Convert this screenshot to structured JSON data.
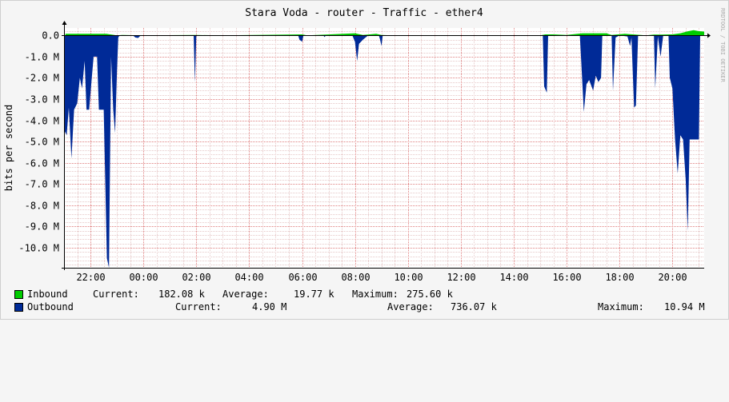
{
  "title": "Stara Voda - router - Traffic - ether4",
  "watermark": "RRDTOOL / TOBI OETIKER",
  "chart_data": {
    "type": "area",
    "ylabel": "bits per second",
    "ylim": [
      -10.94,
      0.35
    ],
    "y_unit": "Mbps",
    "y_ticks": [
      {
        "value": 0,
        "label": "0.0"
      },
      {
        "value": -1,
        "label": "-1.0 M"
      },
      {
        "value": -2,
        "label": "-2.0 M"
      },
      {
        "value": -3,
        "label": "-3.0 M"
      },
      {
        "value": -4,
        "label": "-4.0 M"
      },
      {
        "value": -5,
        "label": "-5.0 M"
      },
      {
        "value": -6,
        "label": "-6.0 M"
      },
      {
        "value": -7,
        "label": "-7.0 M"
      },
      {
        "value": -8,
        "label": "-8.0 M"
      },
      {
        "value": -9,
        "label": "-9.0 M"
      },
      {
        "value": -10,
        "label": "-10.0 M"
      }
    ],
    "x_range_hours": [
      21.0,
      45.2
    ],
    "x_ticks": [
      {
        "hour": 22,
        "label": "22:00"
      },
      {
        "hour": 24,
        "label": "00:00"
      },
      {
        "hour": 26,
        "label": "02:00"
      },
      {
        "hour": 28,
        "label": "04:00"
      },
      {
        "hour": 30,
        "label": "06:00"
      },
      {
        "hour": 32,
        "label": "08:00"
      },
      {
        "hour": 34,
        "label": "10:00"
      },
      {
        "hour": 36,
        "label": "12:00"
      },
      {
        "hour": 38,
        "label": "14:00"
      },
      {
        "hour": 40,
        "label": "16:00"
      },
      {
        "hour": 42,
        "label": "18:00"
      },
      {
        "hour": 44,
        "label": "20:00"
      }
    ],
    "series": [
      {
        "name": "Inbound",
        "color": "#00cc00",
        "points": [
          [
            21.05,
            0.08
          ],
          [
            21.4,
            0.08
          ],
          [
            21.8,
            0.08
          ],
          [
            22.2,
            0.08
          ],
          [
            22.6,
            0.08
          ],
          [
            23.0,
            0.0
          ],
          [
            23.2,
            0.02
          ],
          [
            24.0,
            0.0
          ],
          [
            26.0,
            0.02
          ],
          [
            27.0,
            0.0
          ],
          [
            30.0,
            0.05
          ],
          [
            30.2,
            0.0
          ],
          [
            32.0,
            0.1
          ],
          [
            32.3,
            0.02
          ],
          [
            32.8,
            0.08
          ],
          [
            33.0,
            0.02
          ],
          [
            33.4,
            0.0
          ],
          [
            39.0,
            0.0
          ],
          [
            39.2,
            0.05
          ],
          [
            39.5,
            0.05
          ],
          [
            40.0,
            0.02
          ],
          [
            40.6,
            0.1
          ],
          [
            41.0,
            0.1
          ],
          [
            41.5,
            0.1
          ],
          [
            41.7,
            0.02
          ],
          [
            42.2,
            0.08
          ],
          [
            42.5,
            0.05
          ],
          [
            43.0,
            0.0
          ],
          [
            43.3,
            0.04
          ],
          [
            43.6,
            0.04
          ],
          [
            44.0,
            0.05
          ],
          [
            44.3,
            0.1
          ],
          [
            44.6,
            0.2
          ],
          [
            44.8,
            0.25
          ],
          [
            45.0,
            0.2
          ],
          [
            45.2,
            0.18
          ]
        ]
      },
      {
        "name": "Outbound",
        "color": "#002a97",
        "points": [
          [
            21.02,
            -4.5
          ],
          [
            21.1,
            -4.7
          ],
          [
            21.18,
            -3.4
          ],
          [
            21.28,
            -5.8
          ],
          [
            21.38,
            -3.5
          ],
          [
            21.5,
            -3.2
          ],
          [
            21.6,
            -2.0
          ],
          [
            21.68,
            -2.5
          ],
          [
            21.78,
            -1.2
          ],
          [
            21.85,
            -3.5
          ],
          [
            21.95,
            -3.5
          ],
          [
            22.05,
            -2.0
          ],
          [
            22.12,
            -1.0
          ],
          [
            22.25,
            -1.0
          ],
          [
            22.32,
            -3.5
          ],
          [
            22.5,
            -3.5
          ],
          [
            22.62,
            -10.5
          ],
          [
            22.7,
            -10.94
          ],
          [
            22.78,
            -1.0
          ],
          [
            22.86,
            -3.5
          ],
          [
            22.93,
            -4.6
          ],
          [
            23.0,
            -1.8
          ],
          [
            23.05,
            -0.1
          ],
          [
            23.1,
            0.0
          ],
          [
            23.6,
            0.0
          ],
          [
            23.7,
            -0.1
          ],
          [
            23.8,
            -0.12
          ],
          [
            23.9,
            0.0
          ],
          [
            25.9,
            0.0
          ],
          [
            25.95,
            -2.2
          ],
          [
            26.0,
            0.0
          ],
          [
            29.85,
            0.0
          ],
          [
            29.9,
            -0.2
          ],
          [
            30.0,
            -0.3
          ],
          [
            30.05,
            0.0
          ],
          [
            30.8,
            0.0
          ],
          [
            30.85,
            -0.08
          ],
          [
            30.9,
            0.0
          ],
          [
            31.9,
            0.0
          ],
          [
            32.0,
            -0.3
          ],
          [
            32.08,
            -1.2
          ],
          [
            32.15,
            -0.4
          ],
          [
            32.3,
            -0.2
          ],
          [
            32.45,
            -0.05
          ],
          [
            32.5,
            0.0
          ],
          [
            32.9,
            0.0
          ],
          [
            32.95,
            -0.2
          ],
          [
            33.0,
            -0.5
          ],
          [
            33.05,
            0.0
          ],
          [
            39.1,
            0.0
          ],
          [
            39.15,
            -2.4
          ],
          [
            39.25,
            -2.7
          ],
          [
            39.3,
            0.0
          ],
          [
            40.5,
            0.0
          ],
          [
            40.55,
            -1.2
          ],
          [
            40.65,
            -3.6
          ],
          [
            40.75,
            -2.3
          ],
          [
            40.85,
            -2.1
          ],
          [
            41.0,
            -2.6
          ],
          [
            41.1,
            -1.9
          ],
          [
            41.2,
            -2.2
          ],
          [
            41.3,
            -2.0
          ],
          [
            41.35,
            0.0
          ],
          [
            41.7,
            0.0
          ],
          [
            41.75,
            -2.6
          ],
          [
            41.85,
            -0.1
          ],
          [
            42.0,
            0.0
          ],
          [
            42.3,
            -0.05
          ],
          [
            42.4,
            -0.5
          ],
          [
            42.45,
            -0.1
          ],
          [
            42.55,
            -3.4
          ],
          [
            42.62,
            -3.3
          ],
          [
            42.7,
            0.0
          ],
          [
            43.3,
            0.0
          ],
          [
            43.35,
            -2.5
          ],
          [
            43.45,
            -0.05
          ],
          [
            43.55,
            -1.0
          ],
          [
            43.65,
            0.0
          ],
          [
            43.85,
            0.0
          ],
          [
            43.9,
            -2.0
          ],
          [
            44.0,
            -2.5
          ],
          [
            44.1,
            -4.9
          ],
          [
            44.2,
            -6.5
          ],
          [
            44.3,
            -4.7
          ],
          [
            44.4,
            -4.9
          ],
          [
            44.5,
            -6.8
          ],
          [
            44.58,
            -9.2
          ],
          [
            44.65,
            -4.9
          ],
          [
            45.0,
            -4.9
          ],
          [
            45.05,
            0.0
          ]
        ]
      }
    ]
  },
  "legend": [
    {
      "name": "Inbound",
      "color": "#00cc00",
      "current_label": "Current:",
      "current": "182.08 k",
      "average_label": "Average:",
      "average": "19.77 k",
      "maximum_label": "Maximum:",
      "maximum": "275.60 k"
    },
    {
      "name": "Outbound",
      "color": "#002a97",
      "current_label": "Current:",
      "current": "4.90 M",
      "average_label": "Average:",
      "average": "736.07 k",
      "maximum_label": "Maximum:",
      "maximum": "10.94 M"
    }
  ]
}
